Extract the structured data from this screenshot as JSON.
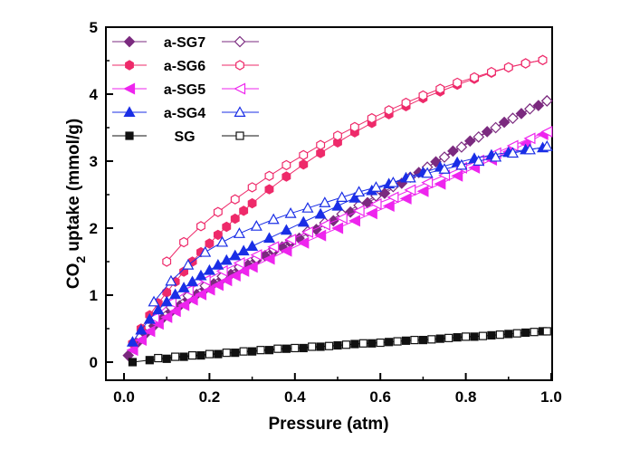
{
  "chart_data": {
    "type": "scatter",
    "xlabel": "Pressure (atm)",
    "ylabel_main": "CO",
    "ylabel_sub": "2",
    "ylabel_rest": " uptake (mmol/g)",
    "xlim": [
      0.0,
      1.0
    ],
    "ylim": [
      0,
      5
    ],
    "x_ticks": [
      "0.0",
      "0.2",
      "0.4",
      "0.6",
      "0.8",
      "1.0"
    ],
    "y_ticks": [
      "0",
      "1",
      "2",
      "3",
      "4",
      "5"
    ],
    "legend_position": "top-left",
    "grid": false,
    "series": [
      {
        "name": "a-SG7",
        "color": "#7b2a7f",
        "marker": "diamond",
        "adsorption": {
          "x": [
            0.01,
            0.03,
            0.05,
            0.07,
            0.09,
            0.11,
            0.13,
            0.15,
            0.17,
            0.19,
            0.21,
            0.23,
            0.25,
            0.27,
            0.29,
            0.31,
            0.33,
            0.35,
            0.37,
            0.39,
            0.41,
            0.45,
            0.49,
            0.53,
            0.57,
            0.61,
            0.65,
            0.69,
            0.73,
            0.77,
            0.81,
            0.85,
            0.89,
            0.93,
            0.97,
            0.99
          ],
          "y": [
            0.1,
            0.28,
            0.42,
            0.54,
            0.65,
            0.75,
            0.84,
            0.93,
            1.01,
            1.09,
            1.17,
            1.24,
            1.31,
            1.38,
            1.45,
            1.52,
            1.59,
            1.65,
            1.72,
            1.78,
            1.85,
            1.98,
            2.11,
            2.24,
            2.38,
            2.52,
            2.67,
            2.83,
            2.99,
            3.15,
            3.3,
            3.44,
            3.58,
            3.71,
            3.83,
            3.9
          ]
        },
        "desorption": {
          "x": [
            0.99,
            0.95,
            0.91,
            0.87,
            0.83,
            0.79,
            0.75,
            0.71,
            0.67,
            0.63,
            0.59,
            0.55,
            0.51,
            0.47,
            0.43,
            0.39,
            0.35,
            0.31,
            0.27,
            0.23,
            0.19,
            0.15,
            0.11,
            0.07
          ],
          "y": [
            3.9,
            3.78,
            3.64,
            3.5,
            3.36,
            3.21,
            3.06,
            2.91,
            2.76,
            2.62,
            2.48,
            2.34,
            2.21,
            2.08,
            1.95,
            1.82,
            1.69,
            1.55,
            1.42,
            1.28,
            1.14,
            0.99,
            0.82,
            0.62
          ]
        }
      },
      {
        "name": "a-SG6",
        "color": "#ee2a6a",
        "marker": "hexagon",
        "adsorption": {
          "x": [
            0.02,
            0.04,
            0.06,
            0.08,
            0.1,
            0.12,
            0.14,
            0.16,
            0.18,
            0.2,
            0.22,
            0.24,
            0.26,
            0.28,
            0.3,
            0.34,
            0.38,
            0.42,
            0.46,
            0.5,
            0.54,
            0.58,
            0.62,
            0.66,
            0.7,
            0.74,
            0.78,
            0.82,
            0.86,
            0.9,
            0.94,
            0.98
          ],
          "y": [
            0.28,
            0.5,
            0.7,
            0.88,
            1.04,
            1.2,
            1.35,
            1.5,
            1.64,
            1.77,
            1.9,
            2.02,
            2.14,
            2.26,
            2.37,
            2.58,
            2.77,
            2.95,
            3.12,
            3.28,
            3.43,
            3.57,
            3.7,
            3.82,
            3.94,
            4.04,
            4.14,
            4.23,
            4.32,
            4.4,
            4.46,
            4.51
          ]
        },
        "desorption": {
          "x": [
            0.98,
            0.94,
            0.9,
            0.86,
            0.82,
            0.78,
            0.74,
            0.7,
            0.66,
            0.62,
            0.58,
            0.54,
            0.5,
            0.46,
            0.42,
            0.38,
            0.34,
            0.3,
            0.26,
            0.22,
            0.18,
            0.14,
            0.1
          ],
          "y": [
            4.51,
            4.46,
            4.4,
            4.33,
            4.25,
            4.17,
            4.08,
            3.98,
            3.87,
            3.76,
            3.64,
            3.51,
            3.38,
            3.24,
            3.09,
            2.94,
            2.78,
            2.61,
            2.43,
            2.24,
            2.03,
            1.79,
            1.5
          ]
        }
      },
      {
        "name": "a-SG5",
        "color": "#ee25ee",
        "marker": "triangle-left",
        "adsorption": {
          "x": [
            0.02,
            0.04,
            0.06,
            0.08,
            0.1,
            0.12,
            0.14,
            0.16,
            0.18,
            0.2,
            0.22,
            0.24,
            0.26,
            0.28,
            0.3,
            0.34,
            0.38,
            0.42,
            0.46,
            0.5,
            0.54,
            0.58,
            0.62,
            0.66,
            0.7,
            0.74,
            0.78,
            0.82,
            0.86,
            0.9,
            0.94,
            0.98
          ],
          "y": [
            0.18,
            0.33,
            0.46,
            0.57,
            0.67,
            0.76,
            0.85,
            0.93,
            1.01,
            1.08,
            1.15,
            1.22,
            1.29,
            1.36,
            1.42,
            1.54,
            1.66,
            1.78,
            1.89,
            2.0,
            2.11,
            2.22,
            2.33,
            2.44,
            2.55,
            2.66,
            2.78,
            2.9,
            3.02,
            3.14,
            3.26,
            3.4
          ]
        },
        "desorption": {
          "x": [
            0.99,
            0.95,
            0.91,
            0.87,
            0.83,
            0.79,
            0.75,
            0.71,
            0.67,
            0.63,
            0.59,
            0.55,
            0.51,
            0.47,
            0.43,
            0.39,
            0.35,
            0.31,
            0.27,
            0.23,
            0.19,
            0.15,
            0.11,
            0.07
          ],
          "y": [
            3.44,
            3.34,
            3.23,
            3.12,
            3.01,
            2.9,
            2.79,
            2.68,
            2.57,
            2.46,
            2.36,
            2.26,
            2.15,
            2.05,
            1.94,
            1.83,
            1.72,
            1.6,
            1.48,
            1.36,
            1.22,
            1.07,
            0.89,
            0.66
          ]
        }
      },
      {
        "name": "a-SG4",
        "color": "#1a2ee6",
        "marker": "triangle-up",
        "adsorption": {
          "x": [
            0.02,
            0.04,
            0.06,
            0.08,
            0.1,
            0.12,
            0.14,
            0.16,
            0.18,
            0.2,
            0.22,
            0.24,
            0.26,
            0.28,
            0.3,
            0.34,
            0.38,
            0.42,
            0.46,
            0.5,
            0.54,
            0.58,
            0.62,
            0.66,
            0.7,
            0.74,
            0.78,
            0.82,
            0.86,
            0.9,
            0.94,
            0.98
          ],
          "y": [
            0.3,
            0.48,
            0.64,
            0.78,
            0.9,
            1.01,
            1.11,
            1.2,
            1.29,
            1.37,
            1.45,
            1.52,
            1.59,
            1.66,
            1.73,
            1.85,
            1.97,
            2.09,
            2.21,
            2.33,
            2.45,
            2.56,
            2.66,
            2.75,
            2.83,
            2.91,
            2.98,
            3.04,
            3.09,
            3.13,
            3.17,
            3.2
          ]
        },
        "desorption": {
          "x": [
            0.99,
            0.95,
            0.91,
            0.87,
            0.83,
            0.79,
            0.75,
            0.71,
            0.67,
            0.63,
            0.59,
            0.55,
            0.51,
            0.47,
            0.43,
            0.39,
            0.35,
            0.31,
            0.27,
            0.23,
            0.19,
            0.15,
            0.11,
            0.07
          ],
          "y": [
            3.22,
            3.17,
            3.12,
            3.06,
            3.0,
            2.94,
            2.88,
            2.82,
            2.75,
            2.68,
            2.61,
            2.54,
            2.46,
            2.38,
            2.3,
            2.22,
            2.13,
            2.03,
            1.92,
            1.79,
            1.64,
            1.45,
            1.21,
            0.9
          ]
        }
      },
      {
        "name": "SG",
        "color": "#111111",
        "marker": "square",
        "adsorption": {
          "x": [
            0.02,
            0.06,
            0.1,
            0.14,
            0.18,
            0.22,
            0.26,
            0.3,
            0.34,
            0.38,
            0.42,
            0.46,
            0.5,
            0.54,
            0.58,
            0.62,
            0.66,
            0.7,
            0.74,
            0.78,
            0.82,
            0.86,
            0.9,
            0.94,
            0.98
          ],
          "y": [
            0.0,
            0.03,
            0.05,
            0.08,
            0.1,
            0.12,
            0.14,
            0.16,
            0.18,
            0.2,
            0.21,
            0.23,
            0.25,
            0.27,
            0.28,
            0.3,
            0.32,
            0.33,
            0.35,
            0.37,
            0.38,
            0.4,
            0.42,
            0.44,
            0.46
          ]
        },
        "desorption": {
          "x": [
            0.99,
            0.96,
            0.92,
            0.88,
            0.84,
            0.8,
            0.76,
            0.72,
            0.68,
            0.64,
            0.6,
            0.56,
            0.52,
            0.48,
            0.44,
            0.4,
            0.36,
            0.32,
            0.28,
            0.24,
            0.2,
            0.16,
            0.12,
            0.08
          ],
          "y": [
            0.46,
            0.45,
            0.43,
            0.41,
            0.39,
            0.38,
            0.36,
            0.34,
            0.33,
            0.31,
            0.29,
            0.28,
            0.26,
            0.24,
            0.23,
            0.21,
            0.2,
            0.18,
            0.16,
            0.14,
            0.12,
            0.1,
            0.08,
            0.06
          ]
        }
      }
    ]
  }
}
